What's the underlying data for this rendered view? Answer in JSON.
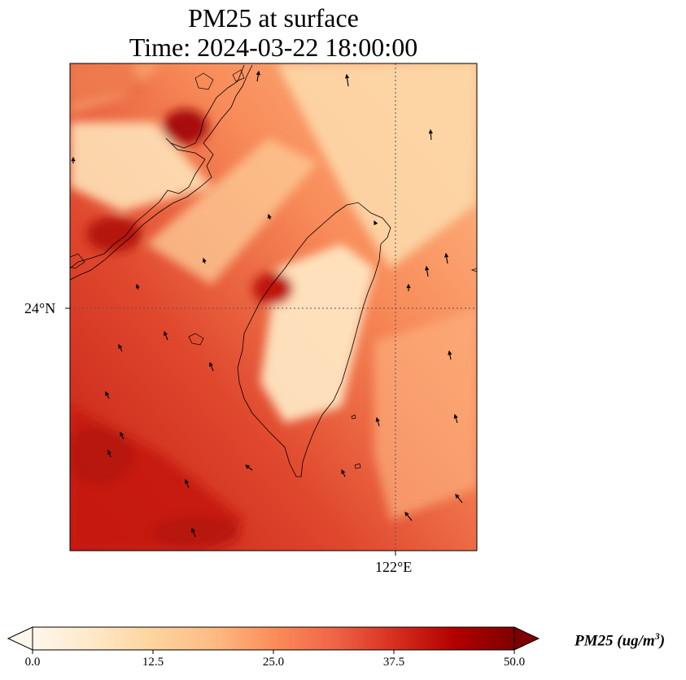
{
  "title": {
    "line1": "PM25 at surface",
    "line2": "Time: 2024-03-22 18:00:00"
  },
  "axes": {
    "lat_label": "24°N",
    "lon_label": "122°E"
  },
  "colorbar": {
    "label_prefix": "PM25 (ug/m",
    "label_sup": "3",
    "label_suffix": ")",
    "ticks": [
      "0.0",
      "12.5",
      "25.0",
      "37.5",
      "50.0"
    ],
    "range": [
      0,
      50
    ],
    "colormap": "OrRd",
    "extend": "both"
  },
  "colors": {
    "low": "#fff7ec",
    "mid": "#fc8d59",
    "high": "#7f0000",
    "coastline": "#000000",
    "gridline": "#555555"
  }
}
